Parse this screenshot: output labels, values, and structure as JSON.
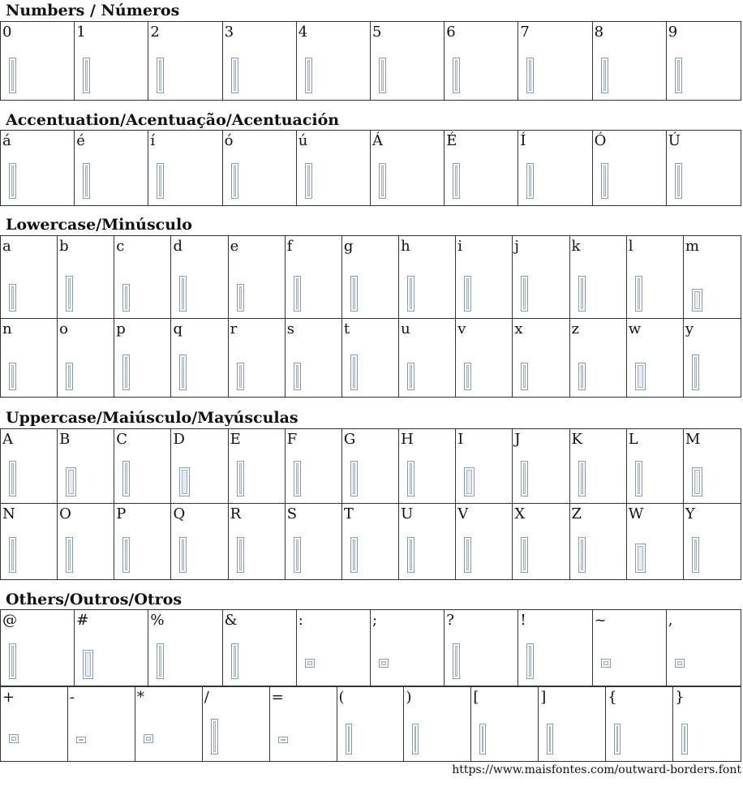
{
  "sections": [
    {
      "title": "Numbers / Números",
      "rows": [
        [
          "0",
          "1",
          "2",
          "3",
          "4",
          "5",
          "6",
          "7",
          "8",
          "9"
        ]
      ]
    },
    {
      "title": "Accentuation/Acentuação/Acentuación",
      "rows": [
        [
          "á",
          "é",
          "í",
          "ó",
          "ú",
          "Á",
          "É",
          "Í",
          "Ó",
          "Ú"
        ]
      ]
    },
    {
      "title": "Lowercase/Minúsculo",
      "rows": [
        [
          "a",
          "b",
          "c",
          "d",
          "e",
          "f",
          "g",
          "h",
          "i",
          "j",
          "k",
          "l",
          "m"
        ],
        [
          "n",
          "o",
          "p",
          "q",
          "r",
          "s",
          "t",
          "u",
          "v",
          "x",
          "z",
          "w",
          "y"
        ]
      ]
    },
    {
      "title": "Uppercase/Maiúsculo/Mayúsculas",
      "rows": [
        [
          "A",
          "B",
          "C",
          "D",
          "E",
          "F",
          "G",
          "H",
          "I",
          "J",
          "K",
          "L",
          "M"
        ],
        [
          "N",
          "O",
          "P",
          "Q",
          "R",
          "S",
          "T",
          "U",
          "V",
          "X",
          "Z",
          "W",
          "Y"
        ]
      ]
    },
    {
      "title": "Others/Outros/Otros",
      "rows": [
        [
          "@",
          "#",
          "%",
          "&",
          ":",
          ";",
          "?",
          "!",
          "~",
          ","
        ],
        [
          "+",
          "-",
          "*",
          "/",
          "=",
          "(",
          ")",
          "[",
          "]",
          "{",
          "}"
        ]
      ]
    }
  ],
  "footer": {
    "url": "https://www.maisfontes.com/outward-borders.font"
  },
  "colors": {
    "glyph_outline": "#8a9bb5",
    "glyph_fill": "#e6eaf2",
    "border": "#333333"
  }
}
